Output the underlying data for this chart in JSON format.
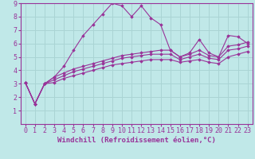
{
  "xlabel": "Windchill (Refroidissement éolien,°C)",
  "ylabel": "",
  "xlim": [
    -0.5,
    23.5
  ],
  "ylim": [
    0,
    9
  ],
  "xticks": [
    0,
    1,
    2,
    3,
    4,
    5,
    6,
    7,
    8,
    9,
    10,
    11,
    12,
    13,
    14,
    15,
    16,
    17,
    18,
    19,
    20,
    21,
    22,
    23
  ],
  "yticks": [
    1,
    2,
    3,
    4,
    5,
    6,
    7,
    8,
    9
  ],
  "bg_color": "#c0e8e8",
  "line_color": "#993399",
  "grid_color": "#aad4d4",
  "series": [
    {
      "x": [
        0,
        1,
        2,
        3,
        4,
        5,
        6,
        7,
        8,
        9,
        10,
        11,
        12,
        13,
        14,
        15,
        16,
        17,
        18,
        19,
        20,
        21,
        22,
        23
      ],
      "y": [
        3.1,
        1.5,
        3.0,
        3.5,
        4.3,
        5.5,
        6.6,
        7.4,
        8.2,
        9.0,
        8.8,
        8.0,
        8.8,
        7.9,
        7.4,
        5.5,
        5.0,
        5.3,
        6.3,
        5.3,
        5.0,
        6.6,
        6.5,
        6.0
      ]
    },
    {
      "x": [
        0,
        1,
        2,
        3,
        4,
        5,
        6,
        7,
        8,
        9,
        10,
        11,
        12,
        13,
        14,
        15,
        16,
        17,
        18,
        19,
        20,
        21,
        22,
        23
      ],
      "y": [
        3.1,
        1.5,
        3.0,
        3.5,
        3.8,
        4.1,
        4.3,
        4.5,
        4.7,
        4.9,
        5.1,
        5.2,
        5.3,
        5.4,
        5.5,
        5.5,
        5.0,
        5.2,
        5.5,
        5.1,
        5.0,
        5.8,
        5.9,
        6.1
      ]
    },
    {
      "x": [
        0,
        1,
        2,
        3,
        4,
        5,
        6,
        7,
        8,
        9,
        10,
        11,
        12,
        13,
        14,
        15,
        16,
        17,
        18,
        19,
        20,
        21,
        22,
        23
      ],
      "y": [
        3.1,
        1.5,
        3.0,
        3.3,
        3.6,
        3.9,
        4.1,
        4.3,
        4.5,
        4.7,
        4.9,
        5.0,
        5.1,
        5.2,
        5.2,
        5.2,
        4.8,
        5.0,
        5.2,
        4.9,
        4.8,
        5.5,
        5.6,
        5.8
      ]
    },
    {
      "x": [
        0,
        1,
        2,
        3,
        4,
        5,
        6,
        7,
        8,
        9,
        10,
        11,
        12,
        13,
        14,
        15,
        16,
        17,
        18,
        19,
        20,
        21,
        22,
        23
      ],
      "y": [
        3.1,
        1.5,
        3.0,
        3.1,
        3.4,
        3.6,
        3.8,
        4.0,
        4.2,
        4.4,
        4.5,
        4.6,
        4.7,
        4.8,
        4.8,
        4.8,
        4.6,
        4.7,
        4.8,
        4.6,
        4.5,
        5.0,
        5.2,
        5.4
      ]
    }
  ],
  "xlabel_fontsize": 6.5,
  "tick_fontsize": 6,
  "line_width": 0.8,
  "marker": "D",
  "marker_size": 1.8
}
